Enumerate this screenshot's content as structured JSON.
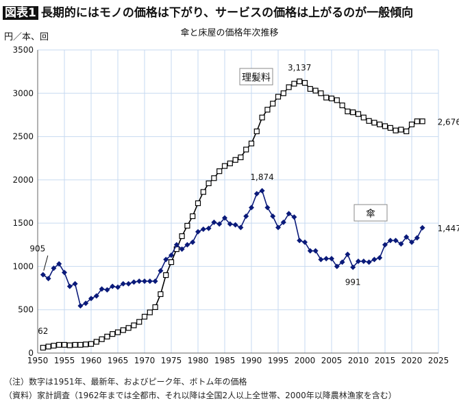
{
  "header": {
    "badge": "図表1",
    "title": "長期的にはモノの価格は下がり、サービスの価格は上がるのが一般傾向"
  },
  "notes": [
    "（注）数字は1951年、最新年、およびピーク年、ボトム年の価格",
    "（資料）家計調査（1962年までは全都市、それ以降は全国2人以上全世帯、2000年以降農林漁家を含む）"
  ],
  "chart_data": {
    "type": "line",
    "title": "傘と床屋の価格年次推移",
    "ylabel": "円／本、回",
    "xlim": [
      1950,
      2025
    ],
    "ylim": [
      0,
      3500
    ],
    "xticks": [
      1950,
      1955,
      1960,
      1965,
      1970,
      1975,
      1980,
      1985,
      1990,
      1995,
      2000,
      2005,
      2010,
      2015,
      2020,
      2025
    ],
    "yticks": [
      0,
      500,
      1000,
      1500,
      2000,
      2500,
      3000,
      3500
    ],
    "grid": true,
    "x_start": 1951,
    "series": [
      {
        "name": "理髪料",
        "color": "#000000",
        "marker": "square-open",
        "values": [
          62,
          75,
          85,
          95,
          95,
          90,
          95,
          95,
          100,
          105,
          130,
          160,
          190,
          220,
          240,
          265,
          290,
          320,
          360,
          420,
          470,
          530,
          680,
          900,
          1050,
          1200,
          1350,
          1470,
          1580,
          1730,
          1860,
          1960,
          2020,
          2100,
          2160,
          2190,
          2230,
          2260,
          2350,
          2420,
          2560,
          2720,
          2810,
          2880,
          2960,
          3000,
          3070,
          3110,
          3137,
          3120,
          3050,
          3030,
          3000,
          2950,
          2940,
          2920,
          2860,
          2790,
          2780,
          2760,
          2720,
          2680,
          2660,
          2640,
          2620,
          2600,
          2570,
          2580,
          2560,
          2640,
          2676,
          2676
        ]
      },
      {
        "name": "傘",
        "color": "#0a1a7a",
        "marker": "diamond",
        "values": [
          905,
          860,
          980,
          1030,
          930,
          770,
          800,
          545,
          575,
          630,
          660,
          740,
          730,
          770,
          760,
          800,
          800,
          820,
          830,
          830,
          830,
          830,
          950,
          1080,
          1130,
          1250,
          1200,
          1250,
          1280,
          1400,
          1430,
          1440,
          1510,
          1490,
          1560,
          1490,
          1480,
          1450,
          1580,
          1680,
          1840,
          1874,
          1680,
          1580,
          1450,
          1510,
          1610,
          1570,
          1300,
          1280,
          1180,
          1180,
          1080,
          1090,
          1090,
          1000,
          1050,
          1140,
          991,
          1060,
          1060,
          1050,
          1080,
          1100,
          1250,
          1300,
          1300,
          1260,
          1340,
          1280,
          1330,
          1447
        ]
      }
    ],
    "annotations": [
      {
        "text": "905",
        "x": 1951,
        "y": 905
      },
      {
        "text": "62",
        "x": 1951,
        "y": 62
      },
      {
        "text": "3,137",
        "x": 1999,
        "y": 3137
      },
      {
        "text": "2,676",
        "x": 2022,
        "y": 2676
      },
      {
        "text": "1,874",
        "x": 1992,
        "y": 1874
      },
      {
        "text": "991",
        "x": 2009,
        "y": 991
      },
      {
        "text": "1,447",
        "x": 2022,
        "y": 1447
      }
    ]
  }
}
